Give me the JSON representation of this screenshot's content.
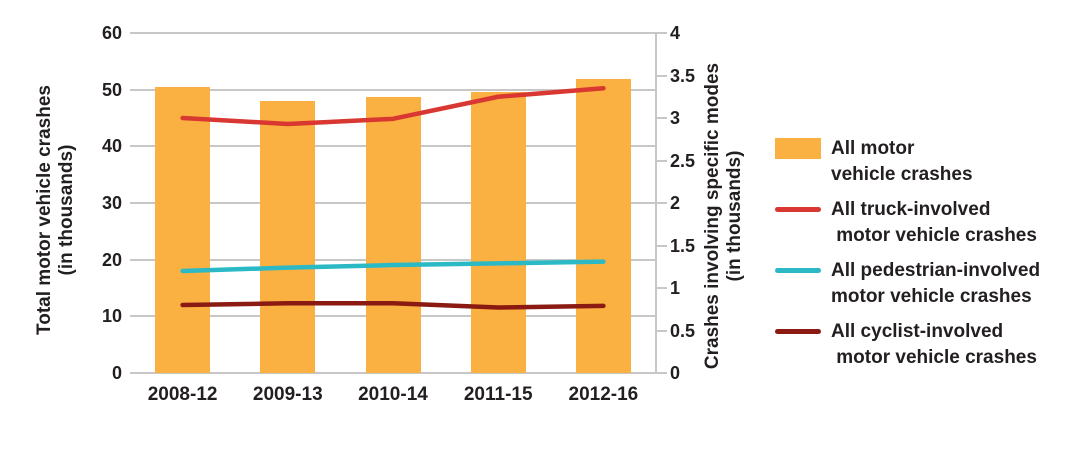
{
  "colors": {
    "bar_orange": "#FBB042",
    "line_red": "#D93732",
    "line_cyan": "#2BB9C6",
    "line_dark_red": "#8B1A12",
    "gridline_grey": "#C7C7C7",
    "text_black": "#231F20",
    "background": "#FFFFFF"
  },
  "chart_data": {
    "type": "bar",
    "subtype": "combo-bar-line-dual-axis",
    "title": "",
    "categories": [
      "2008-12",
      "2009-13",
      "2010-14",
      "2011-15",
      "2012-16"
    ],
    "left_axis": {
      "title_lines": [
        "Total motor vehicle crashes",
        "(in thousands)"
      ],
      "min": 0,
      "max": 60,
      "tick_values": [
        60,
        50,
        40,
        30,
        20,
        10,
        0
      ],
      "tick_labels": [
        "60",
        "50",
        "40",
        "30",
        "20",
        "10",
        "0"
      ]
    },
    "right_axis": {
      "title_lines": [
        "Crashes involving specific modes",
        "(in thousands)"
      ],
      "min": 0,
      "max": 4,
      "tick_values": [
        4,
        3.5,
        3,
        2.5,
        2,
        1.5,
        1,
        0.5,
        0
      ],
      "tick_labels": [
        "4",
        "3.5",
        "3",
        "2.5",
        "2",
        "1.5",
        "1",
        "0.5",
        "0"
      ]
    },
    "grid": "horizontal-only",
    "legend_position": "right",
    "series": [
      {
        "name": "All motor vehicle crashes",
        "type": "bar",
        "axis": "left",
        "color_key": "bar_orange",
        "values": [
          50.5,
          48.0,
          48.7,
          49.6,
          51.9
        ]
      },
      {
        "name": "All truck-involved motor vehicle crashes",
        "type": "line",
        "axis": "right",
        "color_key": "line_red",
        "values": [
          3.0,
          2.93,
          2.99,
          3.25,
          3.35
        ]
      },
      {
        "name": "All pedestrian-involved motor vehicle crashes",
        "type": "line",
        "axis": "right",
        "color_key": "line_cyan",
        "values": [
          1.2,
          1.24,
          1.27,
          1.29,
          1.31
        ]
      },
      {
        "name": "All cyclist-involved motor vehicle crashes",
        "type": "line",
        "axis": "right",
        "color_key": "line_dark_red",
        "values": [
          0.8,
          0.82,
          0.82,
          0.77,
          0.79
        ]
      }
    ]
  },
  "legend": {
    "items": [
      {
        "swatch": "bar",
        "color_key": "bar_orange",
        "lines": [
          "All motor",
          "vehicle crashes"
        ]
      },
      {
        "swatch": "line",
        "color_key": "line_red",
        "lines": [
          "All truck-involved",
          " motor vehicle crashes"
        ]
      },
      {
        "swatch": "line",
        "color_key": "line_cyan",
        "lines": [
          "All pedestrian-involved",
          "motor vehicle crashes"
        ]
      },
      {
        "swatch": "line",
        "color_key": "line_dark_red",
        "lines": [
          "All cyclist-involved",
          " motor vehicle crashes"
        ]
      }
    ]
  }
}
